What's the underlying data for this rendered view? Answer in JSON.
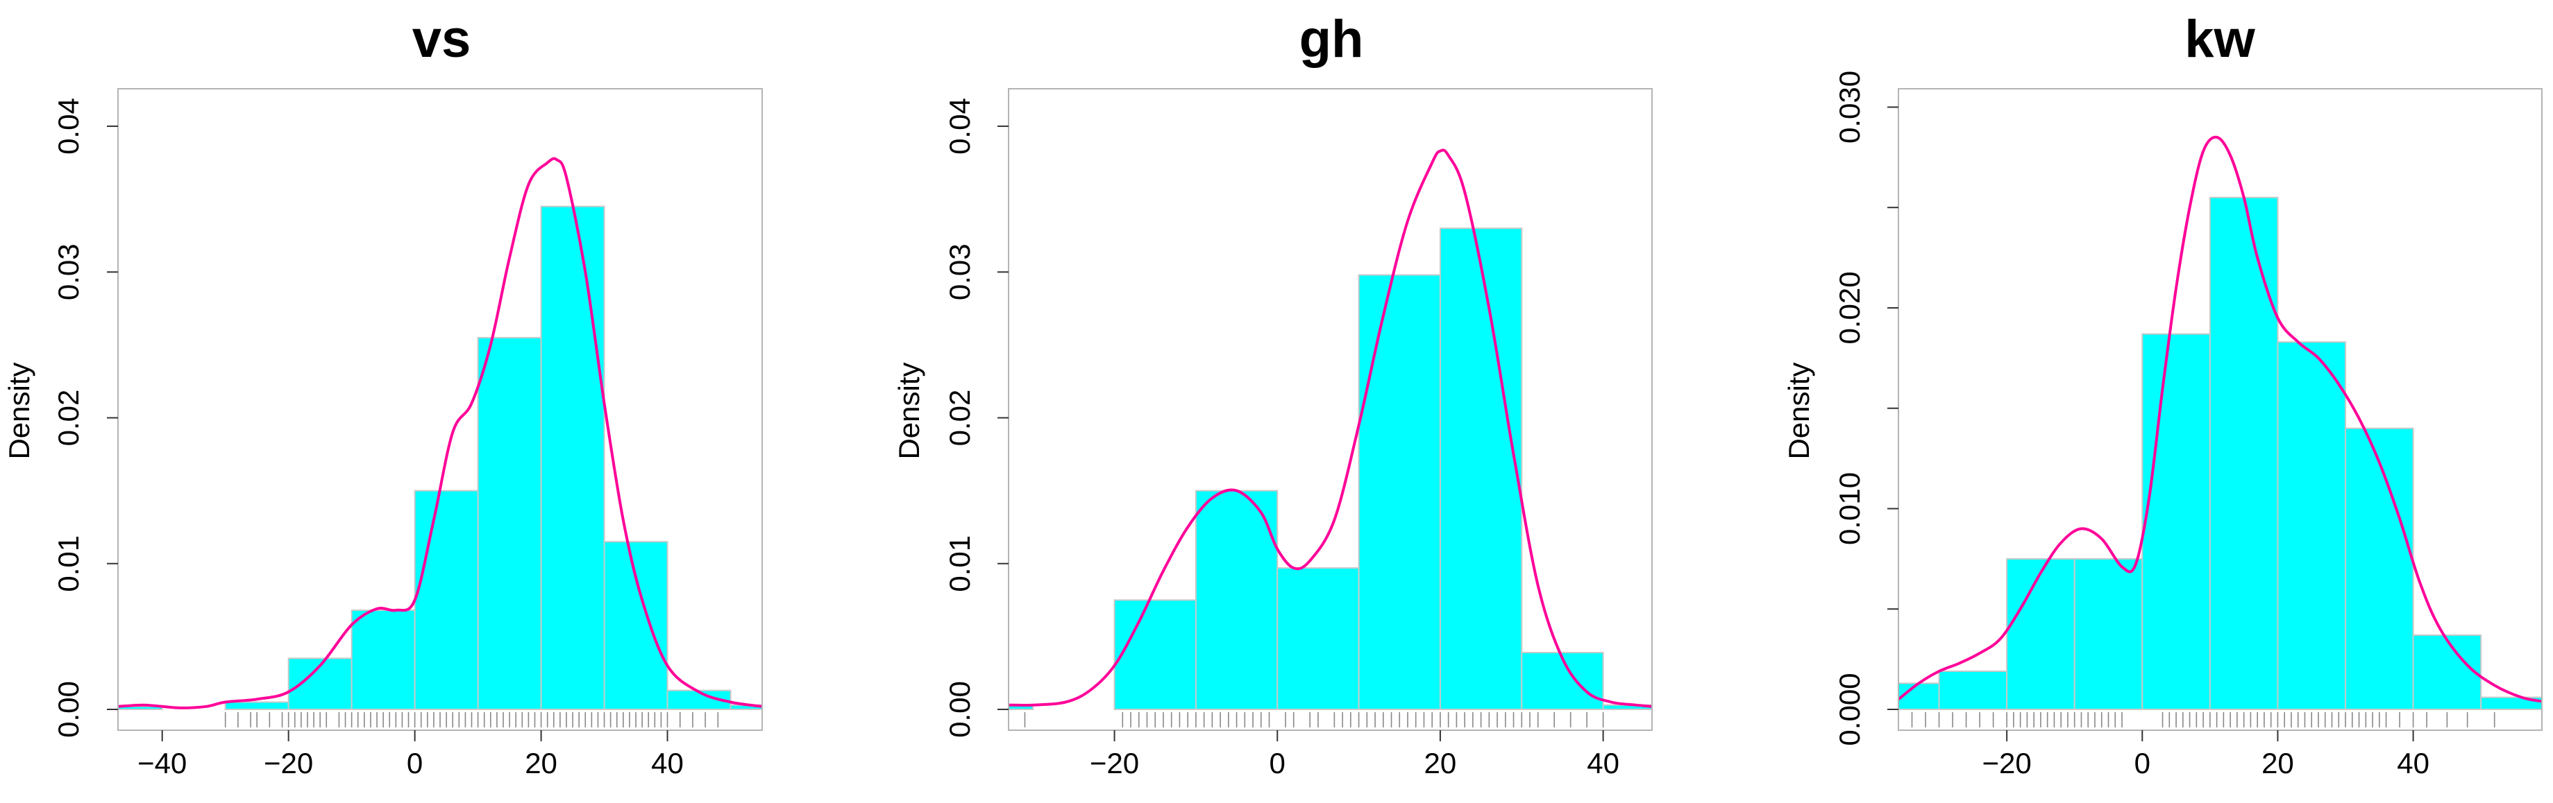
{
  "colors": {
    "bar_fill": "#00FFFF",
    "bar_border": "#C8C8C8",
    "density_line": "#FF0099",
    "rug": "#888888",
    "frame": "#B4B4B4"
  },
  "chart_data": [
    {
      "type": "histogram",
      "title": "vs",
      "xlabel": "",
      "ylabel": "Density",
      "xlim": [
        -47,
        55
      ],
      "ylim": [
        0,
        0.042
      ],
      "xticks": [
        -40,
        -20,
        0,
        20,
        40
      ],
      "xtick_labels": [
        "−40",
        "−20",
        "0",
        "20",
        "40"
      ],
      "yticks": [
        0,
        0.01,
        0.02,
        0.03,
        0.04
      ],
      "ytick_labels": [
        "0.00",
        "0.01",
        "0.02",
        "0.03",
        "0.04"
      ],
      "bins": [
        {
          "x0": -50,
          "x1": -40,
          "density": 0.0002
        },
        {
          "x0": -30,
          "x1": -20,
          "density": 0.0005
        },
        {
          "x0": -20,
          "x1": -10,
          "density": 0.0035
        },
        {
          "x0": -10,
          "x1": 0,
          "density": 0.0068
        },
        {
          "x0": 0,
          "x1": 10,
          "density": 0.015
        },
        {
          "x0": 10,
          "x1": 20,
          "density": 0.0255
        },
        {
          "x0": 20,
          "x1": 30,
          "density": 0.0345
        },
        {
          "x0": 30,
          "x1": 40,
          "density": 0.0115
        },
        {
          "x0": 40,
          "x1": 50,
          "density": 0.0013
        },
        {
          "x0": 50,
          "x1": 60,
          "density": 0.0003
        }
      ],
      "density_curve": {
        "x": [
          -47,
          -43,
          -40,
          -37,
          -33,
          -30,
          -25,
          -20,
          -15,
          -10,
          -6,
          -3,
          0,
          3,
          6,
          9,
          12,
          15,
          18,
          21,
          22.5,
          24,
          27,
          30,
          33,
          36,
          40,
          45,
          50,
          55
        ],
        "y": [
          0.0002,
          0.0003,
          0.0002,
          0.0001,
          0.0002,
          0.0005,
          0.0007,
          0.0012,
          0.003,
          0.0058,
          0.0069,
          0.0068,
          0.0075,
          0.013,
          0.019,
          0.021,
          0.025,
          0.031,
          0.036,
          0.0375,
          0.0377,
          0.0365,
          0.03,
          0.021,
          0.013,
          0.0075,
          0.003,
          0.0012,
          0.0005,
          0.0002
        ]
      },
      "rug": [
        -30,
        -28,
        -26,
        -25,
        -23,
        -21,
        -20,
        -19,
        -18,
        -17,
        -16,
        -15,
        -14,
        -12,
        -11,
        -10,
        -9,
        -8,
        -7,
        -6,
        -5,
        -4,
        -3,
        -2,
        -1,
        0,
        1,
        2,
        3,
        4,
        5,
        6,
        7,
        8,
        9,
        10,
        11,
        12,
        13,
        14,
        15,
        16,
        17,
        18,
        19,
        20,
        21,
        22,
        23,
        24,
        25,
        26,
        27,
        28,
        29,
        30,
        31,
        32,
        33,
        34,
        35,
        36,
        37,
        38,
        39,
        40,
        42,
        44,
        46,
        48
      ]
    },
    {
      "type": "histogram",
      "title": "gh",
      "xlabel": "",
      "ylabel": "Density",
      "xlim": [
        -33,
        46
      ],
      "ylim": [
        0,
        0.042
      ],
      "xticks": [
        -20,
        0,
        20,
        40
      ],
      "xtick_labels": [
        "−20",
        "0",
        "20",
        "40"
      ],
      "yticks": [
        0,
        0.01,
        0.02,
        0.03,
        0.04
      ],
      "ytick_labels": [
        "0.00",
        "0.01",
        "0.02",
        "0.03",
        "0.04"
      ],
      "bins": [
        {
          "x0": -40,
          "x1": -30,
          "density": 0.0003
        },
        {
          "x0": -20,
          "x1": -10,
          "density": 0.0075
        },
        {
          "x0": -10,
          "x1": 0,
          "density": 0.015
        },
        {
          "x0": 0,
          "x1": 10,
          "density": 0.0097
        },
        {
          "x0": 10,
          "x1": 20,
          "density": 0.0298
        },
        {
          "x0": 20,
          "x1": 30,
          "density": 0.033
        },
        {
          "x0": 30,
          "x1": 40,
          "density": 0.0039
        },
        {
          "x0": 40,
          "x1": 50,
          "density": 0.0003
        }
      ],
      "density_curve": {
        "x": [
          -33,
          -30,
          -26,
          -23,
          -20,
          -17,
          -14,
          -11,
          -8,
          -5,
          -2,
          0,
          2,
          4,
          7,
          10,
          13,
          16,
          19,
          20,
          21,
          23,
          26,
          29,
          32,
          35,
          38,
          41,
          44,
          46
        ],
        "y": [
          0.0003,
          0.0003,
          0.0005,
          0.0013,
          0.003,
          0.006,
          0.0095,
          0.0125,
          0.0145,
          0.015,
          0.0135,
          0.011,
          0.0097,
          0.0102,
          0.013,
          0.0195,
          0.027,
          0.0335,
          0.0375,
          0.0383,
          0.038,
          0.0355,
          0.0275,
          0.0175,
          0.0085,
          0.0035,
          0.0012,
          0.0005,
          0.0003,
          0.0002
        ]
      },
      "rug": [
        -31,
        -19,
        -18,
        -17,
        -16,
        -15,
        -14,
        -13,
        -12,
        -11,
        -10,
        -9,
        -8,
        -7,
        -6,
        -5,
        -4,
        -3,
        -2,
        -1,
        1,
        2,
        4,
        5,
        7,
        8,
        9,
        10,
        11,
        12,
        13,
        14,
        15,
        16,
        17,
        18,
        19,
        20,
        21,
        22,
        23,
        24,
        25,
        26,
        27,
        28,
        29,
        30,
        31,
        32,
        34,
        36,
        38,
        40
      ]
    },
    {
      "type": "histogram",
      "title": "kw",
      "xlabel": "",
      "ylabel": "Density",
      "xlim": [
        -36,
        59
      ],
      "ylim": [
        0,
        0.0305
      ],
      "xticks": [
        -20,
        0,
        20,
        40
      ],
      "xtick_labels": [
        "−20",
        "0",
        "20",
        "40"
      ],
      "yticks": [
        0,
        0.01,
        0.02,
        0.03
      ],
      "ytick_labels": [
        "0.000",
        "0.010",
        "0.020",
        "0.030"
      ],
      "minor_yticks": [
        0.005,
        0.015,
        0.025
      ],
      "bins": [
        {
          "x0": -40,
          "x1": -30,
          "density": 0.0013
        },
        {
          "x0": -30,
          "x1": -20,
          "density": 0.0019
        },
        {
          "x0": -20,
          "x1": -10,
          "density": 0.0075
        },
        {
          "x0": -10,
          "x1": 0,
          "density": 0.0075
        },
        {
          "x0": 0,
          "x1": 10,
          "density": 0.0187
        },
        {
          "x0": 10,
          "x1": 20,
          "density": 0.0255
        },
        {
          "x0": 20,
          "x1": 30,
          "density": 0.0183
        },
        {
          "x0": 30,
          "x1": 40,
          "density": 0.014
        },
        {
          "x0": 40,
          "x1": 50,
          "density": 0.0037
        },
        {
          "x0": 50,
          "x1": 60,
          "density": 0.0006
        }
      ],
      "density_curve": {
        "x": [
          -36,
          -33,
          -30,
          -27,
          -24,
          -21,
          -18,
          -15,
          -12,
          -9,
          -6,
          -3,
          -1,
          1,
          3,
          5,
          7,
          9,
          11,
          13,
          15,
          17,
          20,
          23,
          26,
          29,
          32,
          35,
          38,
          41,
          44,
          48,
          52,
          56,
          59
        ],
        "y": [
          0.0005,
          0.0013,
          0.0019,
          0.0023,
          0.0028,
          0.0035,
          0.005,
          0.0068,
          0.0083,
          0.009,
          0.0085,
          0.0071,
          0.0072,
          0.0105,
          0.016,
          0.021,
          0.025,
          0.0278,
          0.0285,
          0.0276,
          0.0255,
          0.0225,
          0.0195,
          0.0183,
          0.0175,
          0.0162,
          0.0145,
          0.0123,
          0.0095,
          0.0063,
          0.004,
          0.0022,
          0.0012,
          0.0006,
          0.0004
        ]
      },
      "rug": [
        -34,
        -32,
        -30,
        -28,
        -26,
        -24,
        -22,
        -20,
        -19,
        -18,
        -17,
        -16,
        -15,
        -14,
        -13,
        -12,
        -11,
        -10,
        -9,
        -8,
        -7,
        -6,
        -5,
        -4,
        -3,
        3,
        4,
        5,
        6,
        7,
        8,
        9,
        10,
        11,
        12,
        13,
        14,
        15,
        16,
        17,
        18,
        19,
        20,
        21,
        22,
        23,
        24,
        25,
        26,
        27,
        28,
        29,
        30,
        31,
        32,
        33,
        34,
        35,
        36,
        38,
        40,
        42,
        45,
        48,
        52
      ]
    }
  ]
}
